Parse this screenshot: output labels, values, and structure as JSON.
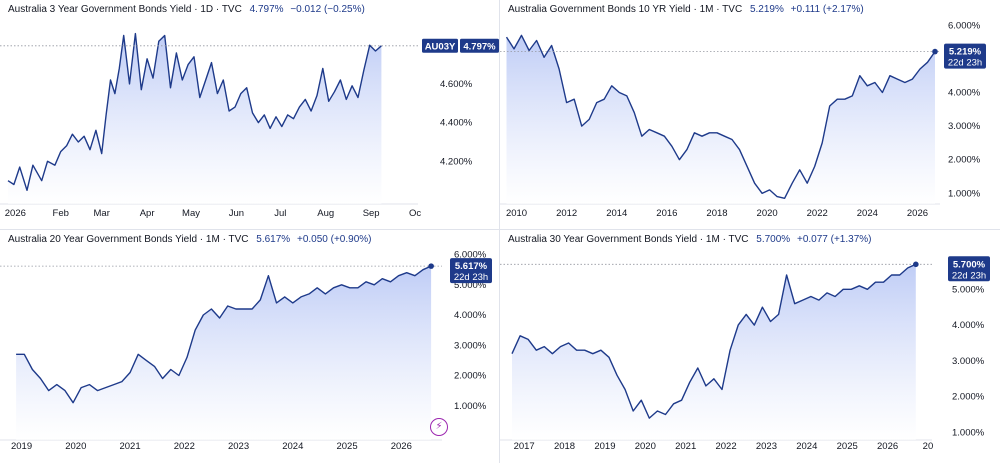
{
  "chart_data": [
    {
      "type": "area",
      "title": "Australia 3 Year Government Bonds Yield · 1D · TVC",
      "last_value": "4.797%",
      "change": "−0.012 (−0.25%)",
      "badges": [
        "AU03Y",
        "4.797%"
      ],
      "y_ticks": [
        "4.200%",
        "4.400%",
        "4.600%"
      ],
      "y_tick_values": [
        4.2,
        4.4,
        4.6
      ],
      "ylim": [
        4.0,
        4.92
      ],
      "x_ticks": [
        "2026",
        "Feb",
        "Mar",
        "Apr",
        "May",
        "Jun",
        "Jul",
        "Aug",
        "Sep",
        "Oc"
      ],
      "x_tick_values": [
        0,
        31,
        59,
        90,
        120,
        151,
        181,
        212,
        243,
        273
      ],
      "xlim": [
        -5,
        275
      ],
      "grid": false,
      "series": [
        {
          "x": [
            -5,
            -1,
            3,
            8,
            12,
            18,
            22,
            27,
            31,
            35,
            39,
            43,
            47,
            51,
            55,
            59,
            62,
            65,
            68,
            71,
            74,
            78,
            82,
            86,
            90,
            94,
            98,
            102,
            106,
            110,
            114,
            118,
            122,
            126,
            130,
            134,
            138,
            142,
            146,
            150,
            154,
            158,
            162,
            166,
            170,
            174,
            178,
            182,
            186,
            190,
            194,
            198,
            202,
            206,
            210,
            214,
            218,
            222,
            226,
            230,
            234,
            238,
            242,
            246,
            250
          ],
          "values": [
            4.1,
            4.08,
            4.17,
            4.05,
            4.18,
            4.1,
            4.2,
            4.18,
            4.25,
            4.28,
            4.34,
            4.3,
            4.33,
            4.26,
            4.36,
            4.24,
            4.44,
            4.62,
            4.55,
            4.68,
            4.85,
            4.6,
            4.86,
            4.57,
            4.73,
            4.63,
            4.82,
            4.85,
            4.58,
            4.76,
            4.62,
            4.7,
            4.74,
            4.53,
            4.62,
            4.71,
            4.55,
            4.62,
            4.46,
            4.48,
            4.55,
            4.58,
            4.45,
            4.4,
            4.44,
            4.37,
            4.43,
            4.38,
            4.44,
            4.42,
            4.48,
            4.52,
            4.46,
            4.54,
            4.68,
            4.51,
            4.56,
            4.62,
            4.52,
            4.59,
            4.53,
            4.67,
            4.8,
            4.77,
            4.797
          ]
        }
      ]
    },
    {
      "type": "area",
      "title": "Australia Government Bonds 10 YR Yield · 1M · TVC",
      "last_value": "5.219%",
      "change": "+0.111 (+2.17%)",
      "badges": [
        "5.219%",
        "22d 23h"
      ],
      "y_ticks": [
        "1.000%",
        "2.000%",
        "3.000%",
        "4.000%",
        "5.000%",
        "6.000%"
      ],
      "y_tick_values": [
        1,
        2,
        3,
        4,
        5,
        6
      ],
      "ylim": [
        0.8,
        6.1
      ],
      "x_ticks": [
        "2010",
        "2012",
        "2014",
        "2016",
        "2018",
        "2020",
        "2022",
        "2024",
        "2026"
      ],
      "x_tick_values": [
        2010,
        2012,
        2014,
        2016,
        2018,
        2020,
        2022,
        2024,
        2026
      ],
      "xlim": [
        2009.5,
        2026.9
      ],
      "grid": false,
      "series": [
        {
          "x": [
            2009.6,
            2009.9,
            2010.2,
            2010.5,
            2010.8,
            2011.1,
            2011.4,
            2011.7,
            2012.0,
            2012.3,
            2012.6,
            2012.9,
            2013.2,
            2013.5,
            2013.8,
            2014.1,
            2014.4,
            2014.7,
            2015.0,
            2015.3,
            2015.6,
            2015.9,
            2016.2,
            2016.5,
            2016.8,
            2017.1,
            2017.4,
            2017.7,
            2018.0,
            2018.3,
            2018.6,
            2018.9,
            2019.2,
            2019.5,
            2019.8,
            2020.1,
            2020.4,
            2020.7,
            2021.0,
            2021.3,
            2021.6,
            2021.9,
            2022.2,
            2022.5,
            2022.8,
            2023.1,
            2023.4,
            2023.7,
            2024.0,
            2024.3,
            2024.6,
            2024.9,
            2025.2,
            2025.5,
            2025.8,
            2026.1,
            2026.4,
            2026.7
          ],
          "values": [
            5.65,
            5.3,
            5.7,
            5.25,
            5.55,
            5.05,
            5.4,
            4.7,
            3.7,
            3.8,
            3.0,
            3.2,
            3.7,
            3.8,
            4.2,
            4.0,
            3.9,
            3.4,
            2.7,
            2.9,
            2.8,
            2.7,
            2.4,
            2.0,
            2.3,
            2.8,
            2.7,
            2.8,
            2.8,
            2.7,
            2.6,
            2.3,
            1.8,
            1.3,
            1.0,
            1.1,
            0.9,
            0.85,
            1.3,
            1.7,
            1.3,
            1.8,
            2.5,
            3.6,
            3.8,
            3.8,
            3.9,
            4.5,
            4.2,
            4.3,
            4.0,
            4.5,
            4.4,
            4.3,
            4.4,
            4.7,
            4.9,
            5.219
          ]
        }
      ]
    },
    {
      "type": "area",
      "title": "Australia 20 Year Government Bonds Yield · 1M · TVC",
      "last_value": "5.617%",
      "change": "+0.050 (+0.90%)",
      "badges": [
        "5.617%",
        "22d 23h"
      ],
      "y_ticks": [
        "1.000%",
        "2.000%",
        "3.000%",
        "4.000%",
        "5.000%",
        "6.000%"
      ],
      "y_tick_values": [
        1,
        2,
        3,
        4,
        5,
        6
      ],
      "ylim": [
        0.0,
        6.15
      ],
      "x_ticks": [
        "2019",
        "2020",
        "2021",
        "2022",
        "2023",
        "2024",
        "2025",
        "2026"
      ],
      "x_tick_values": [
        2019,
        2020,
        2021,
        2022,
        2023,
        2024,
        2025,
        2026
      ],
      "xlim": [
        2018.75,
        2026.75
      ],
      "grid": false,
      "series": [
        {
          "x": [
            2018.9,
            2019.05,
            2019.2,
            2019.35,
            2019.5,
            2019.65,
            2019.8,
            2019.95,
            2020.1,
            2020.25,
            2020.4,
            2020.55,
            2020.7,
            2020.85,
            2021.0,
            2021.15,
            2021.3,
            2021.45,
            2021.6,
            2021.75,
            2021.9,
            2022.05,
            2022.2,
            2022.35,
            2022.5,
            2022.65,
            2022.8,
            2022.95,
            2023.1,
            2023.25,
            2023.4,
            2023.55,
            2023.7,
            2023.85,
            2024.0,
            2024.15,
            2024.3,
            2024.45,
            2024.6,
            2024.75,
            2024.9,
            2025.05,
            2025.2,
            2025.35,
            2025.5,
            2025.65,
            2025.8,
            2025.95,
            2026.1,
            2026.25,
            2026.4,
            2026.55
          ],
          "values": [
            2.7,
            2.7,
            2.2,
            1.9,
            1.5,
            1.7,
            1.5,
            1.1,
            1.6,
            1.7,
            1.5,
            1.6,
            1.7,
            1.8,
            2.1,
            2.7,
            2.5,
            2.3,
            1.9,
            2.2,
            2.0,
            2.6,
            3.5,
            4.0,
            4.2,
            3.9,
            4.3,
            4.2,
            4.2,
            4.2,
            4.5,
            5.3,
            4.4,
            4.6,
            4.4,
            4.6,
            4.7,
            4.9,
            4.7,
            4.9,
            5.0,
            4.9,
            4.9,
            5.1,
            5.0,
            5.2,
            5.1,
            5.3,
            5.4,
            5.3,
            5.5,
            5.617
          ]
        }
      ]
    },
    {
      "type": "area",
      "title": "Australia 30 Year Government Bonds Yield · 1M · TVC",
      "last_value": "5.700%",
      "change": "+0.077 (+1.37%)",
      "badges": [
        "5.700%",
        "22d 23h"
      ],
      "y_ticks": [
        "1.000%",
        "2.000%",
        "3.000%",
        "4.000%",
        "5.000%"
      ],
      "y_tick_values": [
        1,
        2,
        3,
        4,
        5
      ],
      "ylim": [
        0.9,
        6.1
      ],
      "x_ticks": [
        "2017",
        "2018",
        "2019",
        "2020",
        "2021",
        "2022",
        "2023",
        "2024",
        "2025",
        "2026",
        "20"
      ],
      "x_tick_values": [
        2017,
        2018,
        2019,
        2020,
        2021,
        2022,
        2023,
        2024,
        2025,
        2026,
        2027
      ],
      "xlim": [
        2016.6,
        2027.1
      ],
      "grid": false,
      "series": [
        {
          "x": [
            2016.7,
            2016.9,
            2017.1,
            2017.3,
            2017.5,
            2017.7,
            2017.9,
            2018.1,
            2018.3,
            2018.5,
            2018.7,
            2018.9,
            2019.1,
            2019.3,
            2019.5,
            2019.7,
            2019.9,
            2020.1,
            2020.3,
            2020.5,
            2020.7,
            2020.9,
            2021.1,
            2021.3,
            2021.5,
            2021.7,
            2021.9,
            2022.1,
            2022.3,
            2022.5,
            2022.7,
            2022.9,
            2023.1,
            2023.3,
            2023.5,
            2023.7,
            2023.9,
            2024.1,
            2024.3,
            2024.5,
            2024.7,
            2024.9,
            2025.1,
            2025.3,
            2025.5,
            2025.7,
            2025.9,
            2026.1,
            2026.3,
            2026.5,
            2026.7
          ],
          "values": [
            3.2,
            3.7,
            3.6,
            3.3,
            3.4,
            3.2,
            3.4,
            3.5,
            3.3,
            3.3,
            3.2,
            3.3,
            3.1,
            2.6,
            2.2,
            1.6,
            1.9,
            1.4,
            1.6,
            1.5,
            1.8,
            1.9,
            2.4,
            2.8,
            2.3,
            2.5,
            2.2,
            3.3,
            4.0,
            4.3,
            4.0,
            4.5,
            4.1,
            4.3,
            5.4,
            4.6,
            4.7,
            4.8,
            4.7,
            4.9,
            4.8,
            5.0,
            5.0,
            5.1,
            5.0,
            5.2,
            5.2,
            5.4,
            5.4,
            5.6,
            5.7
          ]
        }
      ]
    }
  ],
  "colors": {
    "line": "#1e3a8a",
    "fill_top": "#b8c7f5",
    "fill_bottom": "#ffffff",
    "badge": "#1e3a8a",
    "text": "#131722",
    "dotted": "#9598a1",
    "axis": "#e0e3eb",
    "icon": "#9c27b0"
  },
  "flash_icon": "lightning-icon"
}
